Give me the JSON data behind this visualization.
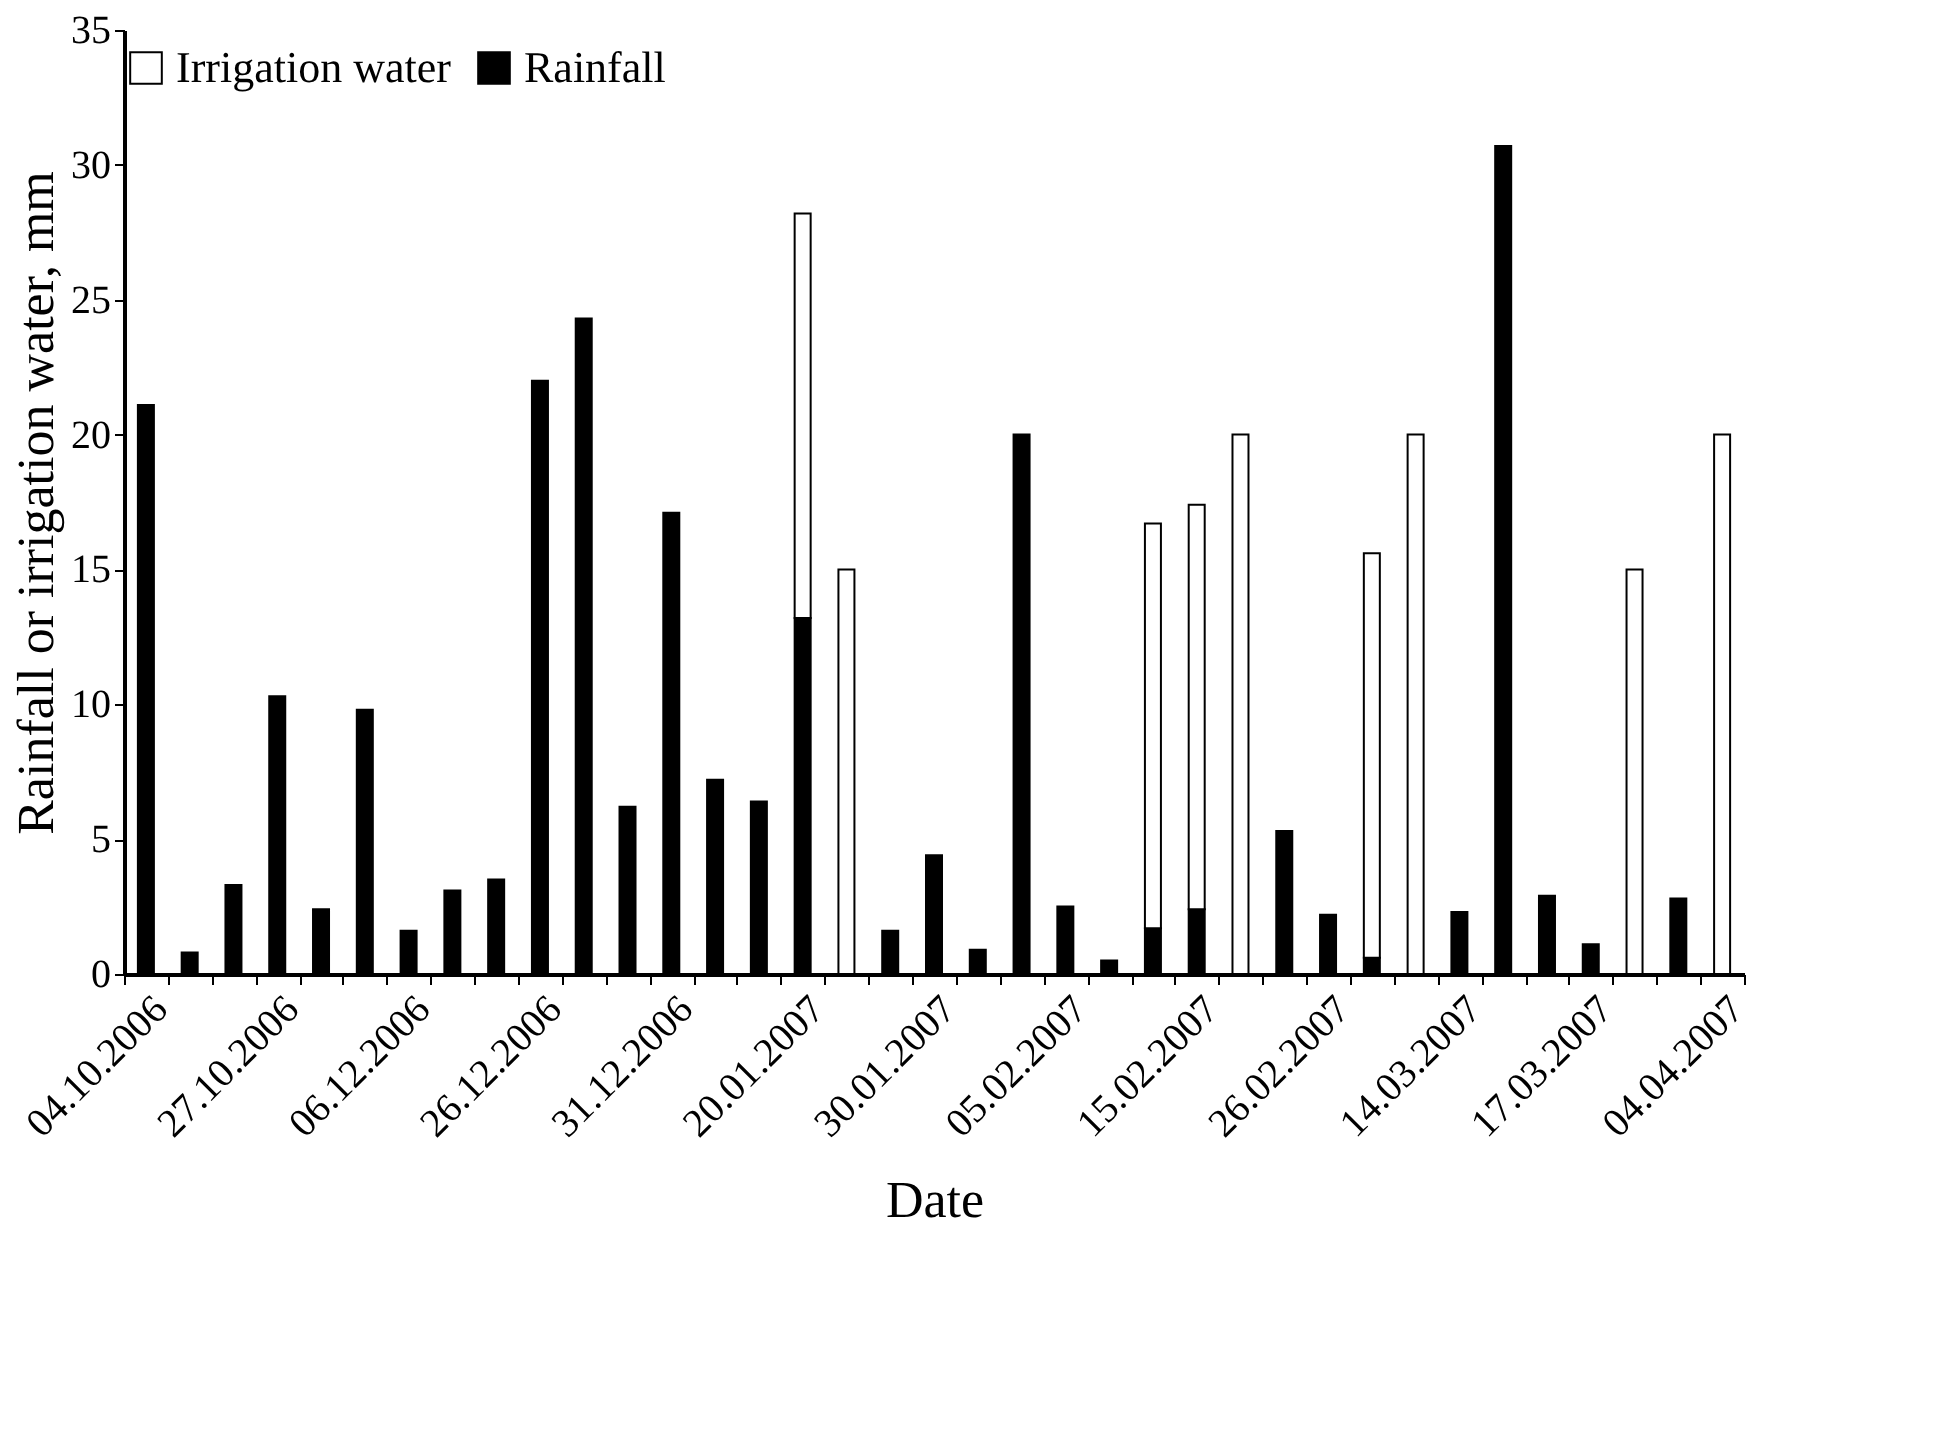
{
  "chart_data": {
    "type": "bar",
    "stacked": true,
    "xlabel": "Date",
    "ylabel": "Rainfall or irrigation water, mm",
    "categories": [
      "04.10.2006",
      null,
      null,
      "27.10.2006",
      null,
      null,
      "06.12.2006",
      null,
      null,
      "26.12.2006",
      null,
      null,
      "31.12.2006",
      null,
      null,
      "20.01.2007",
      null,
      null,
      "30.01.2007",
      null,
      null,
      "05.02.2007",
      null,
      null,
      "15.02.2007",
      null,
      null,
      "26.02.2007",
      null,
      null,
      "14.03.2007",
      null,
      null,
      "17.03.2007",
      null,
      null,
      "04.04.2007"
    ],
    "series": [
      {
        "name": "Rainfall",
        "color": "#000000",
        "values": [
          21.1,
          0.8,
          3.3,
          10.3,
          2.4,
          9.8,
          1.6,
          3.1,
          3.5,
          22.0,
          24.3,
          6.2,
          17.1,
          7.2,
          6.4,
          13.2,
          null,
          1.6,
          4.4,
          0.9,
          20.0,
          2.5,
          0.5,
          1.7,
          2.4,
          null,
          5.3,
          2.2,
          0.6,
          null,
          2.3,
          30.7,
          2.9,
          1.1,
          null,
          2.8,
          null
        ]
      },
      {
        "name": "Irrigation water",
        "color": "#ffffff",
        "values": [
          null,
          null,
          null,
          null,
          null,
          null,
          null,
          null,
          null,
          null,
          null,
          null,
          null,
          null,
          null,
          15,
          15,
          null,
          null,
          null,
          null,
          null,
          null,
          15,
          15,
          20,
          null,
          null,
          15,
          20,
          null,
          null,
          null,
          null,
          15,
          null,
          20
        ]
      }
    ],
    "ylim": [
      0,
      35
    ],
    "yticks": [
      0,
      5,
      10,
      15,
      20,
      25,
      30,
      35
    ],
    "grid": false,
    "legend": "top"
  }
}
